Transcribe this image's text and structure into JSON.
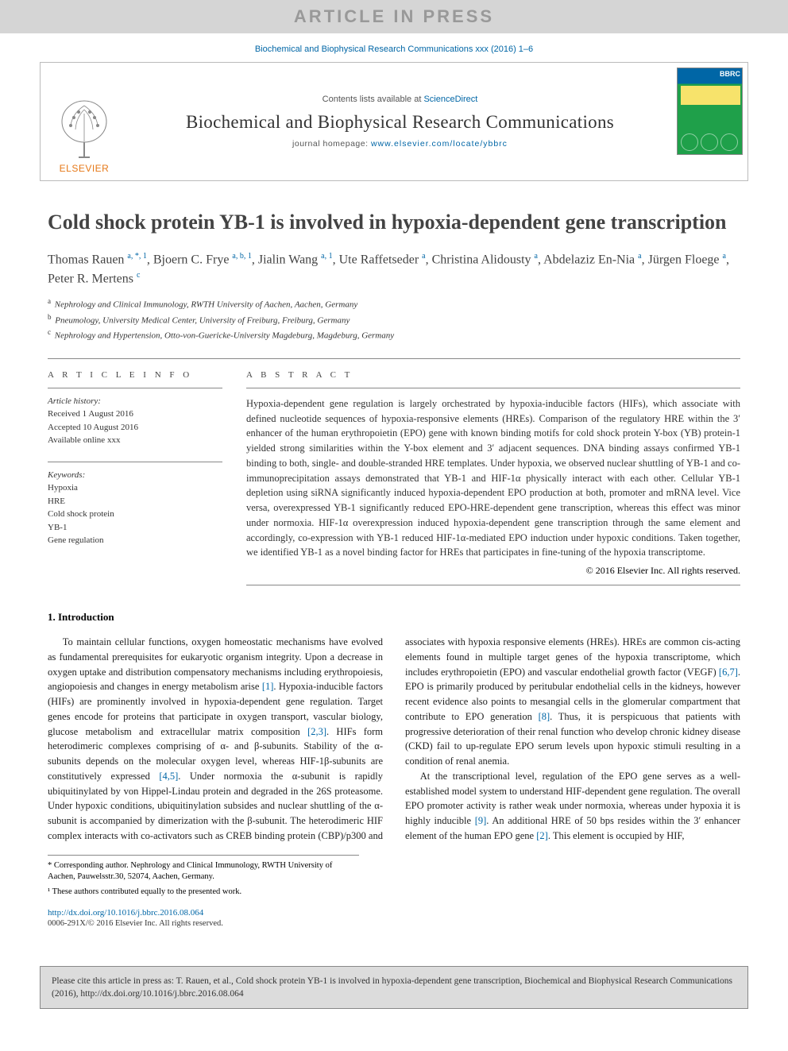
{
  "banner": "ARTICLE IN PRESS",
  "journal_ref": "Biochemical and Biophysical Research Communications xxx (2016) 1–6",
  "header": {
    "contents_prefix": "Contents lists available at ",
    "contents_link": "ScienceDirect",
    "journal_name": "Biochemical and Biophysical Research Communications",
    "homepage_prefix": "journal homepage: ",
    "homepage_url": "www.elsevier.com/locate/ybbrc",
    "publisher": "ELSEVIER",
    "cover_label": "BBRC"
  },
  "title": "Cold shock protein YB-1 is involved in hypoxia-dependent gene transcription",
  "authors_html": "Thomas Rauen <sup>a, *, 1</sup>, Bjoern C. Frye <sup>a, b, 1</sup>, Jialin Wang <sup>a, 1</sup>, Ute Raffetseder <sup>a</sup>, Christina Alidousty <sup>a</sup>, Abdelaziz En-Nia <sup>a</sup>, Jürgen Floege <sup>a</sup>, Peter R. Mertens <sup>c</sup>",
  "affiliations": [
    {
      "mark": "a",
      "text": "Nephrology and Clinical Immunology, RWTH University of Aachen, Aachen, Germany"
    },
    {
      "mark": "b",
      "text": "Pneumology, University Medical Center, University of Freiburg, Freiburg, Germany"
    },
    {
      "mark": "c",
      "text": "Nephrology and Hypertension, Otto-von-Guericke-University Magdeburg, Magdeburg, Germany"
    }
  ],
  "article_info": {
    "head": "A R T I C L E   I N F O",
    "history_label": "Article history:",
    "received": "Received 1 August 2016",
    "accepted": "Accepted 10 August 2016",
    "online": "Available online xxx",
    "keywords_label": "Keywords:",
    "keywords": [
      "Hypoxia",
      "HRE",
      "Cold shock protein",
      "YB-1",
      "Gene regulation"
    ]
  },
  "abstract": {
    "head": "A B S T R A C T",
    "text": "Hypoxia-dependent gene regulation is largely orchestrated by hypoxia-inducible factors (HIFs), which associate with defined nucleotide sequences of hypoxia-responsive elements (HREs). Comparison of the regulatory HRE within the 3′ enhancer of the human erythropoietin (EPO) gene with known binding motifs for cold shock protein Y-box (YB) protein-1 yielded strong similarities within the Y-box element and 3′ adjacent sequences. DNA binding assays confirmed YB-1 binding to both, single- and double-stranded HRE templates. Under hypoxia, we observed nuclear shuttling of YB-1 and co-immunoprecipitation assays demonstrated that YB-1 and HIF-1α physically interact with each other. Cellular YB-1 depletion using siRNA significantly induced hypoxia-dependent EPO production at both, promoter and mRNA level. Vice versa, overexpressed YB-1 significantly reduced EPO-HRE-dependent gene transcription, whereas this effect was minor under normoxia. HIF-1α overexpression induced hypoxia-dependent gene transcription through the same element and accordingly, co-expression with YB-1 reduced HIF-1α-mediated EPO induction under hypoxic conditions. Taken together, we identified YB-1 as a novel binding factor for HREs that participates in fine-tuning of the hypoxia transcriptome.",
    "copyright": "© 2016 Elsevier Inc. All rights reserved."
  },
  "introduction": {
    "head": "1.  Introduction",
    "p1": "To maintain cellular functions, oxygen homeostatic mechanisms have evolved as fundamental prerequisites for eukaryotic organism integrity. Upon a decrease in oxygen uptake and distribution compensatory mechanisms including erythropoiesis, angiopoiesis and changes in energy metabolism arise [1]. Hypoxia-inducible factors (HIFs) are prominently involved in hypoxia-dependent gene regulation. Target genes encode for proteins that participate in oxygen transport, vascular biology, glucose metabolism and extracellular matrix composition [2,3]. HIFs form heterodimeric complexes comprising of α- and β-subunits. Stability of the α-subunits depends on the molecular oxygen level, whereas HIF-1β-subunits are constitutively expressed [4,5]. Under normoxia the α-subunit is rapidly ubiquitinylated by von Hippel-Lindau protein and degraded in the 26S proteasome. Under hypoxic conditions, ubiquitinylation subsides and nuclear shuttling of the α-subunit is accompanied by dimerization with the β-subunit. The heterodimeric HIF complex interacts with co-activators such as CREB binding protein (CBP)/p300 and associates with hypoxia responsive elements (HREs). HREs are common cis-acting elements found in multiple target genes of the hypoxia transcriptome, which includes erythropoietin (EPO) and vascular endothelial growth factor (VEGF) [6,7]. EPO is primarily produced by peritubular endothelial cells in the kidneys, however recent evidence also points to mesangial cells in the glomerular compartment that contribute to EPO generation [8]. Thus, it is perspicuous that patients with progressive deterioration of their renal function who develop chronic kidney disease (CKD) fail to up-regulate EPO serum levels upon hypoxic stimuli resulting in a condition of renal anemia.",
    "p2": "At the transcriptional level, regulation of the EPO gene serves as a well-established model system to understand HIF-dependent gene regulation. The overall EPO promoter activity is rather weak under normoxia, whereas under hypoxia it is highly inducible [9]. An additional HRE of 50 bps resides within the 3′ enhancer element of the human EPO gene [2]. This element is occupied by HIF,"
  },
  "footnotes": {
    "corr": "* Corresponding author. Nephrology and Clinical Immunology, RWTH University of Aachen, Pauwelsstr.30, 52074, Aachen, Germany.",
    "equal": "¹ These authors contributed equally to the presented work."
  },
  "doi": {
    "url": "http://dx.doi.org/10.1016/j.bbrc.2016.08.064",
    "issn": "0006-291X/© 2016 Elsevier Inc. All rights reserved."
  },
  "cite_box": "Please cite this article in press as: T. Rauen, et al., Cold shock protein YB-1 is involved in hypoxia-dependent gene transcription, Biochemical and Biophysical Research Communications (2016), http://dx.doi.org/10.1016/j.bbrc.2016.08.064",
  "colors": {
    "link": "#0066a6",
    "publisher_orange": "#e67817",
    "banner_bg": "#d5d5d5",
    "banner_text": "#999999"
  }
}
